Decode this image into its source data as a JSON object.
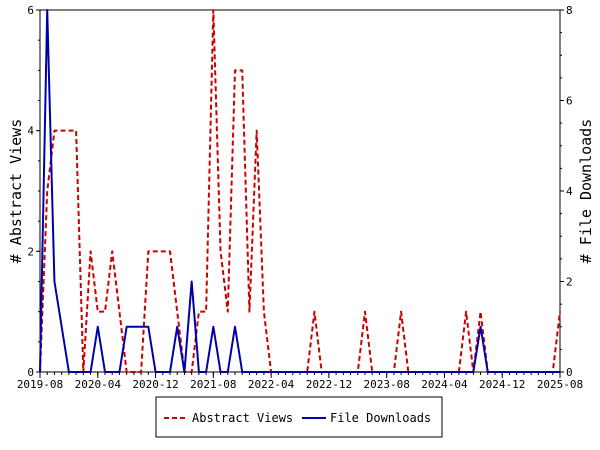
{
  "chart_data": {
    "type": "line",
    "title": "",
    "xlabel": "",
    "ylabel_left": "# Abstract Views",
    "ylabel_right": "# File Downloads",
    "ylim_left": [
      0,
      6
    ],
    "ylim_right": [
      0,
      8
    ],
    "yticks_left": [
      "0",
      "2",
      "4",
      "6"
    ],
    "yticks_right": [
      "0",
      "2",
      "4",
      "6",
      "8"
    ],
    "xrange": [
      "2019-08",
      "2025-08"
    ],
    "xticks": [
      "2019-08",
      "2020-04",
      "2020-12",
      "2021-08",
      "2022-04",
      "2022-12",
      "2023-08",
      "2024-04",
      "2024-12",
      "2025-08"
    ],
    "grid": false,
    "legend_position": "bottom",
    "series": [
      {
        "name": "Abstract Views",
        "axis": "left",
        "color": "#cc0000",
        "style": "dashed",
        "points": [
          [
            "2019-08",
            0
          ],
          [
            "2019-09",
            3
          ],
          [
            "2019-10",
            4
          ],
          [
            "2019-11",
            4
          ],
          [
            "2019-12",
            4
          ],
          [
            "2020-01",
            4
          ],
          [
            "2020-02",
            0
          ],
          [
            "2020-03",
            2
          ],
          [
            "2020-04",
            1
          ],
          [
            "2020-05",
            1
          ],
          [
            "2020-06",
            2
          ],
          [
            "2020-07",
            1
          ],
          [
            "2020-08",
            0
          ],
          [
            "2020-09",
            0
          ],
          [
            "2020-10",
            0
          ],
          [
            "2020-11",
            2
          ],
          [
            "2020-12",
            2
          ],
          [
            "2021-01",
            2
          ],
          [
            "2021-02",
            2
          ],
          [
            "2021-03",
            1
          ],
          [
            "2021-04",
            0
          ],
          [
            "2021-05",
            0
          ],
          [
            "2021-06",
            1
          ],
          [
            "2021-07",
            1
          ],
          [
            "2021-08",
            6
          ],
          [
            "2021-09",
            2
          ],
          [
            "2021-10",
            1
          ],
          [
            "2021-11",
            5
          ],
          [
            "2021-12",
            5
          ],
          [
            "2022-01",
            1
          ],
          [
            "2022-02",
            4
          ],
          [
            "2022-03",
            1
          ],
          [
            "2022-04",
            0
          ],
          [
            "2022-05",
            0
          ],
          [
            "2022-06",
            0
          ],
          [
            "2022-07",
            0
          ],
          [
            "2022-08",
            0
          ],
          [
            "2022-09",
            0
          ],
          [
            "2022-10",
            1
          ],
          [
            "2022-11",
            0
          ],
          [
            "2022-12",
            0
          ],
          [
            "2023-01",
            0
          ],
          [
            "2023-02",
            0
          ],
          [
            "2023-03",
            0
          ],
          [
            "2023-04",
            0
          ],
          [
            "2023-05",
            1
          ],
          [
            "2023-06",
            0
          ],
          [
            "2023-07",
            0
          ],
          [
            "2023-08",
            0
          ],
          [
            "2023-09",
            0
          ],
          [
            "2023-10",
            1
          ],
          [
            "2023-11",
            0
          ],
          [
            "2023-12",
            0
          ],
          [
            "2024-01",
            0
          ],
          [
            "2024-02",
            0
          ],
          [
            "2024-03",
            0
          ],
          [
            "2024-04",
            0
          ],
          [
            "2024-05",
            0
          ],
          [
            "2024-06",
            0
          ],
          [
            "2024-07",
            1
          ],
          [
            "2024-08",
            0
          ],
          [
            "2024-09",
            1
          ],
          [
            "2024-10",
            0
          ],
          [
            "2024-11",
            0
          ],
          [
            "2024-12",
            0
          ],
          [
            "2025-01",
            0
          ],
          [
            "2025-02",
            0
          ],
          [
            "2025-03",
            0
          ],
          [
            "2025-04",
            0
          ],
          [
            "2025-05",
            0
          ],
          [
            "2025-06",
            0
          ],
          [
            "2025-07",
            0
          ],
          [
            "2025-08",
            1
          ]
        ]
      },
      {
        "name": "File Downloads",
        "axis": "right",
        "color": "#0000aa",
        "style": "solid",
        "points": [
          [
            "2019-08",
            0
          ],
          [
            "2019-09",
            8
          ],
          [
            "2019-10",
            2
          ],
          [
            "2019-11",
            1
          ],
          [
            "2019-12",
            0
          ],
          [
            "2020-01",
            0
          ],
          [
            "2020-02",
            0
          ],
          [
            "2020-03",
            0
          ],
          [
            "2020-04",
            1
          ],
          [
            "2020-05",
            0
          ],
          [
            "2020-06",
            0
          ],
          [
            "2020-07",
            0
          ],
          [
            "2020-08",
            1
          ],
          [
            "2020-09",
            1
          ],
          [
            "2020-10",
            1
          ],
          [
            "2020-11",
            1
          ],
          [
            "2020-12",
            0
          ],
          [
            "2021-01",
            0
          ],
          [
            "2021-02",
            0
          ],
          [
            "2021-03",
            1
          ],
          [
            "2021-04",
            0
          ],
          [
            "2021-05",
            2
          ],
          [
            "2021-06",
            0
          ],
          [
            "2021-07",
            0
          ],
          [
            "2021-08",
            1
          ],
          [
            "2021-09",
            0
          ],
          [
            "2021-10",
            0
          ],
          [
            "2021-11",
            1
          ],
          [
            "2021-12",
            0
          ],
          [
            "2022-01",
            0
          ],
          [
            "2022-02",
            0
          ],
          [
            "2022-03",
            0
          ],
          [
            "2022-04",
            0
          ],
          [
            "2022-05",
            0
          ],
          [
            "2022-06",
            0
          ],
          [
            "2022-07",
            0
          ],
          [
            "2022-08",
            0
          ],
          [
            "2022-09",
            0
          ],
          [
            "2022-10",
            0
          ],
          [
            "2022-11",
            0
          ],
          [
            "2022-12",
            0
          ],
          [
            "2023-01",
            0
          ],
          [
            "2023-02",
            0
          ],
          [
            "2023-03",
            0
          ],
          [
            "2023-04",
            0
          ],
          [
            "2023-05",
            0
          ],
          [
            "2023-06",
            0
          ],
          [
            "2023-07",
            0
          ],
          [
            "2023-08",
            0
          ],
          [
            "2023-09",
            0
          ],
          [
            "2023-10",
            0
          ],
          [
            "2023-11",
            0
          ],
          [
            "2023-12",
            0
          ],
          [
            "2024-01",
            0
          ],
          [
            "2024-02",
            0
          ],
          [
            "2024-03",
            0
          ],
          [
            "2024-04",
            0
          ],
          [
            "2024-05",
            0
          ],
          [
            "2024-06",
            0
          ],
          [
            "2024-07",
            0
          ],
          [
            "2024-08",
            0
          ],
          [
            "2024-09",
            1
          ],
          [
            "2024-10",
            0
          ],
          [
            "2024-11",
            0
          ],
          [
            "2024-12",
            0
          ],
          [
            "2025-01",
            0
          ],
          [
            "2025-02",
            0
          ],
          [
            "2025-03",
            0
          ],
          [
            "2025-04",
            0
          ],
          [
            "2025-05",
            0
          ],
          [
            "2025-06",
            0
          ],
          [
            "2025-07",
            0
          ],
          [
            "2025-08",
            0
          ]
        ]
      }
    ]
  }
}
